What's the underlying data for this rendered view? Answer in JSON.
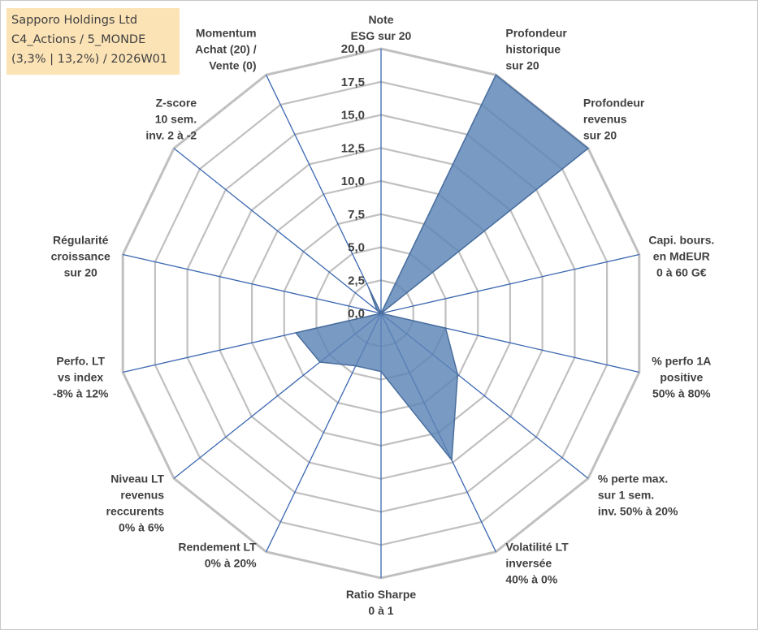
{
  "infobox": {
    "line1": "Sapporo Holdings Ltd",
    "line2": "C4_Actions / 5_MONDE",
    "line3": "(3,3% | 13,2%) / 2026W01"
  },
  "chart_data": {
    "type": "radar",
    "title": "",
    "rmax": 20,
    "ticks": [
      "0,0",
      "2,5",
      "5,0",
      "7,5",
      "10,0",
      "12,5",
      "15,0",
      "17,5",
      "20,0"
    ],
    "grid": true,
    "categories": [
      [
        "Note",
        "ESG sur 20"
      ],
      [
        "Profondeur",
        "historique",
        "sur 20"
      ],
      [
        "Profondeur",
        "revenus",
        "sur 20"
      ],
      [
        "Capi. bours.",
        "en MdEUR",
        "0 à 60 G€"
      ],
      [
        "% perfo 1A",
        "positive",
        "50% à 80%"
      ],
      [
        "% perte max.",
        "sur 1 sem.",
        "inv. 50% à 20%"
      ],
      [
        "Volatilité LT",
        "inversée",
        "40% à 0%"
      ],
      [
        "Ratio Sharpe",
        "0 à 1"
      ],
      [
        "Rendement LT",
        "0% à 20%"
      ],
      [
        "Niveau LT",
        "revenus",
        "reccurents",
        "0% à 6%"
      ],
      [
        "Perfo. LT",
        "vs index",
        "-8% à 12%"
      ],
      [
        "Régularité",
        "croissance",
        "sur 20"
      ],
      [
        "Z-score",
        "10 sem.",
        "inv. 2 à -2"
      ],
      [
        "Momentum",
        "Achat (20) /",
        "Vente (0)"
      ]
    ],
    "values": [
      0,
      20,
      20,
      0,
      5,
      7.4,
      12.3,
      4.4,
      4.4,
      5.9,
      6.6,
      0,
      0.4,
      2.1
    ],
    "colors": {
      "fill": "#5b84b6",
      "stroke": "#4a6f9e",
      "grid": "#c0c0c0",
      "axis": "#3b67b1"
    }
  }
}
